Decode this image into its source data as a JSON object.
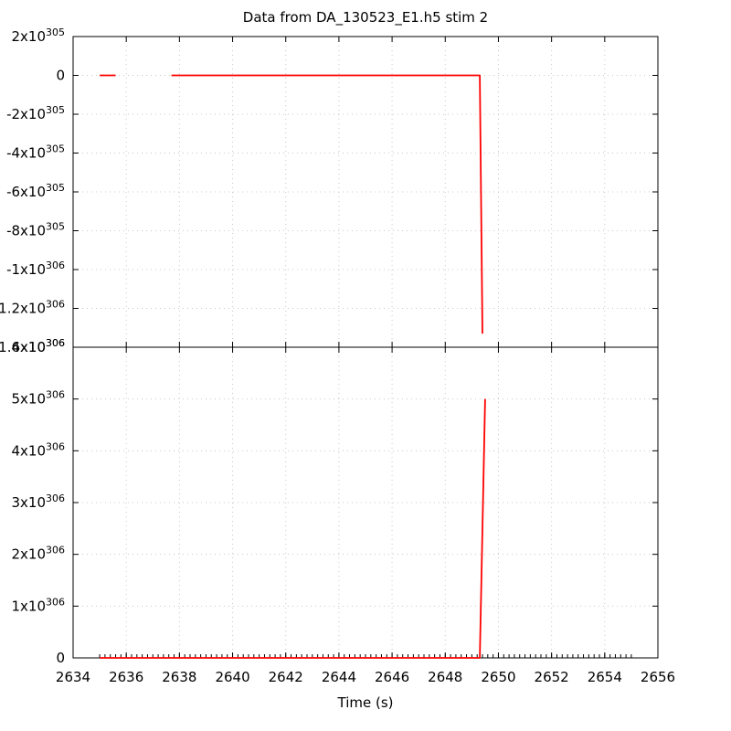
{
  "title": "Data from DA_130523_E1.h5 stim 2",
  "chart_data": [
    {
      "type": "line",
      "panel": "top",
      "title": "Data from DA_130523_E1.h5 stim 2",
      "xlim": [
        2634,
        2656
      ],
      "ylim": [
        -1.4e+306,
        2e+305
      ],
      "x_ticks": [
        2634,
        2636,
        2638,
        2640,
        2642,
        2644,
        2646,
        2648,
        2650,
        2652,
        2654,
        2656
      ],
      "y_ticks": [
        {
          "value": 2e+305,
          "base": "2x10",
          "exp": "305"
        },
        {
          "value": 0,
          "base": "0",
          "exp": ""
        },
        {
          "value": -2e+305,
          "base": "-2x10",
          "exp": "305"
        },
        {
          "value": -4e+305,
          "base": "-4x10",
          "exp": "305"
        },
        {
          "value": -6e+305,
          "base": "-6x10",
          "exp": "305"
        },
        {
          "value": -8e+305,
          "base": "-8x10",
          "exp": "305"
        },
        {
          "value": -1e+306,
          "base": "-1x10",
          "exp": "306"
        },
        {
          "value": -1.2e+306,
          "base": "-1.2x10",
          "exp": "306"
        },
        {
          "value": -1.4e+306,
          "base": "-1.4x10",
          "exp": "306"
        }
      ],
      "grid": true,
      "series": [
        {
          "color": "#ff0000",
          "segments": [
            [
              [
                2635.0,
                0
              ],
              [
                2635.6,
                0
              ]
            ],
            [
              [
                2637.7,
                0
              ],
              [
                2649.3,
                0
              ],
              [
                2649.4,
                -1.33e+306
              ]
            ]
          ]
        }
      ]
    },
    {
      "type": "line",
      "panel": "bottom",
      "xlabel": "Time (s)",
      "xlim": [
        2634,
        2656
      ],
      "ylim": [
        0,
        6e+306
      ],
      "x_ticks": [
        2634,
        2636,
        2638,
        2640,
        2642,
        2644,
        2646,
        2648,
        2650,
        2652,
        2654,
        2656
      ],
      "y_ticks": [
        {
          "value": 0,
          "base": "0",
          "exp": ""
        },
        {
          "value": 1e+306,
          "base": "1x10",
          "exp": "306"
        },
        {
          "value": 2e+306,
          "base": "2x10",
          "exp": "306"
        },
        {
          "value": 3e+306,
          "base": "3x10",
          "exp": "306"
        },
        {
          "value": 4e+306,
          "base": "4x10",
          "exp": "306"
        },
        {
          "value": 5e+306,
          "base": "5x10",
          "exp": "306"
        },
        {
          "value": 6e+306,
          "base": "6x10",
          "exp": "306"
        }
      ],
      "grid": true,
      "series": [
        {
          "color": "#ff0000",
          "segments": [
            [
              [
                2635.0,
                0
              ],
              [
                2649.3,
                0
              ],
              [
                2649.5,
                5e+306
              ]
            ]
          ]
        }
      ],
      "event_marks": {
        "color": "#000000",
        "start": 2635.0,
        "end": 2654.9,
        "step": 0.2
      }
    }
  ]
}
